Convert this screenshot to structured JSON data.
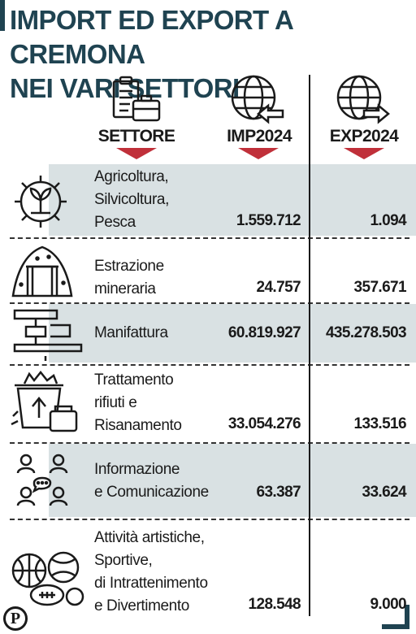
{
  "title": "IMPORT ED EXPORT A CREMONA\nNEI VARI SETTORI",
  "logo_text": "P",
  "chart_data": {
    "type": "table",
    "title": "IMPORT ED EXPORT A CREMONA NEI VARI SETTORI",
    "columns": [
      "SETTORE",
      "IMP2024",
      "EXP2024"
    ],
    "rows": [
      {
        "settore": "Agricoltura,\nSilvicoltura,\nPesca",
        "imp": "1.559.712",
        "exp": "1.094",
        "icon": "agriculture-gear-icon",
        "shaded": true
      },
      {
        "settore": "Estrazione\nmineraria",
        "imp": "24.757",
        "exp": "357.671",
        "icon": "mine-icon",
        "shaded": false
      },
      {
        "settore": "Manifattura",
        "imp": "60.819.927",
        "exp": "435.278.503",
        "icon": "manufacturing-press-icon",
        "shaded": true
      },
      {
        "settore": "Trattamento\nrifiuti e\nRisanamento",
        "imp": "33.054.276",
        "exp": "133.516",
        "icon": "waste-recycling-icon",
        "shaded": false
      },
      {
        "settore": "Informazione\ne Comunicazione",
        "imp": "63.387",
        "exp": "33.624",
        "icon": "communication-people-icon",
        "shaded": true
      },
      {
        "settore": "Attività artistiche,\nSportive,\ndi Intrattenimento\ne Divertimento",
        "imp": "128.548",
        "exp": "9.000",
        "icon": "sports-balls-icon",
        "shaded": false
      }
    ]
  },
  "header_icons": {
    "settore": "clipboard-briefcase-icon",
    "imp": "globe-arrow-in-icon",
    "exp": "globe-arrow-out-icon"
  },
  "colors": {
    "accent": "#c0303a",
    "title": "#1f4351",
    "shade": "#d9e1e3"
  }
}
